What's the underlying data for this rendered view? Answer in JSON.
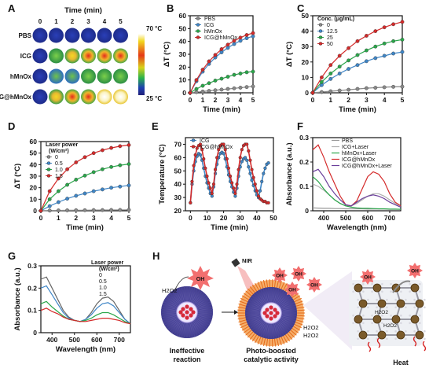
{
  "panels": {
    "A": {
      "label": "A",
      "time_title": "Time (min)",
      "time_ticks": [
        "0",
        "1",
        "2",
        "3",
        "4",
        "5"
      ],
      "rows": [
        "PBS",
        "ICG",
        "hMnOx",
        "ICG@hMnOx"
      ],
      "colorbar_max": "70 °C",
      "colorbar_min": "25 °C"
    },
    "H": {
      "label": "H",
      "nir": "NIR",
      "oh": "OH",
      "h2o2": "H2O2",
      "caption1": "Ineffective",
      "caption2": "reaction",
      "caption3": "Photo-boosted",
      "caption4": "catalytic activity",
      "caption5": "Heat"
    }
  },
  "chart_data": [
    {
      "id": "B",
      "type": "line",
      "label": "B",
      "xlabel": "Time (min)",
      "ylabel": "ΔT (°C)",
      "xlim": [
        0,
        5
      ],
      "ylim": [
        0,
        60
      ],
      "xticks": [
        0,
        1,
        2,
        3,
        4,
        5
      ],
      "yticks": [
        0,
        10,
        20,
        30,
        40,
        50,
        60
      ],
      "legend_position": "top-left",
      "x": [
        0,
        0.5,
        1,
        1.5,
        2,
        2.5,
        3,
        3.5,
        4,
        4.5,
        5
      ],
      "series": [
        {
          "name": "PBS",
          "color": "#888888",
          "values": [
            0,
            0.5,
            1,
            1.5,
            2,
            2.5,
            3,
            3.5,
            4,
            4.5,
            5
          ]
        },
        {
          "name": "ICG",
          "color": "#3f86c7",
          "values": [
            0,
            9,
            16.5,
            22.5,
            27.5,
            31.5,
            35,
            38,
            40.5,
            42.5,
            44
          ]
        },
        {
          "name": "hMnOx",
          "color": "#2aa64a",
          "values": [
            0,
            3,
            5.5,
            7.5,
            9.5,
            11,
            12.5,
            14,
            15,
            16,
            16.5
          ]
        },
        {
          "name": "ICG@hMnOx",
          "color": "#d42a2a",
          "values": [
            0,
            10,
            18,
            24.5,
            29.5,
            34,
            37.5,
            40.5,
            43,
            45,
            46.5
          ]
        }
      ]
    },
    {
      "id": "C",
      "type": "line",
      "label": "C",
      "xlabel": "Time (min)",
      "ylabel": "ΔT (°C)",
      "xlim": [
        0,
        5
      ],
      "ylim": [
        0,
        50
      ],
      "xticks": [
        0,
        1,
        2,
        3,
        4,
        5
      ],
      "yticks": [
        0,
        10,
        20,
        30,
        40,
        50
      ],
      "legend_title": "Conc. (μg/mL)",
      "legend_position": "top-left",
      "x": [
        0,
        0.5,
        1,
        1.5,
        2,
        2.5,
        3,
        3.5,
        4,
        4.5,
        5
      ],
      "series": [
        {
          "name": "0",
          "color": "#888888",
          "values": [
            0,
            0.5,
            1,
            1.5,
            2,
            2.5,
            3,
            3.3,
            3.6,
            3.9,
            4
          ]
        },
        {
          "name": "12.5",
          "color": "#3f86c7",
          "values": [
            0,
            5,
            9,
            12.5,
            15.5,
            18,
            20.5,
            22.5,
            24,
            25.5,
            26.5
          ]
        },
        {
          "name": "25",
          "color": "#2aa64a",
          "values": [
            0,
            7,
            12.5,
            17,
            21,
            24.5,
            27.5,
            30,
            32,
            33.5,
            34.5
          ]
        },
        {
          "name": "50",
          "color": "#d42a2a",
          "values": [
            0,
            10,
            18,
            24,
            29,
            33.5,
            37,
            40,
            42.5,
            44.5,
            46
          ]
        }
      ]
    },
    {
      "id": "D",
      "type": "line",
      "label": "D",
      "xlabel": "Time (min)",
      "ylabel": "ΔT (°C)",
      "xlim": [
        0,
        5
      ],
      "ylim": [
        0,
        60
      ],
      "xticks": [
        0,
        1,
        2,
        3,
        4,
        5
      ],
      "yticks": [
        0,
        10,
        20,
        30,
        40,
        50,
        60
      ],
      "legend_title": "Laser power",
      "legend_subtitle": "(W/cm²)",
      "legend_position": "top-left",
      "x": [
        0,
        0.5,
        1,
        1.5,
        2,
        2.5,
        3,
        3.5,
        4,
        4.5,
        5
      ],
      "series": [
        {
          "name": "0",
          "color": "#888888",
          "values": [
            0,
            0.2,
            0.3,
            0.4,
            0.5,
            0.5,
            0.6,
            0.6,
            0.7,
            0.7,
            0.8
          ]
        },
        {
          "name": "0.5",
          "color": "#3f86c7",
          "values": [
            0,
            4,
            7.5,
            10.5,
            13,
            15,
            17,
            18.5,
            20,
            21,
            22
          ]
        },
        {
          "name": "1.0",
          "color": "#2aa64a",
          "values": [
            0,
            10,
            17,
            22.5,
            27,
            30.5,
            33.5,
            36,
            38,
            39.5,
            40.5
          ]
        },
        {
          "name": "1.5",
          "color": "#d42a2a",
          "values": [
            0,
            17,
            28,
            36,
            42,
            46.5,
            50,
            52.5,
            54.5,
            56,
            57
          ]
        }
      ]
    },
    {
      "id": "E",
      "type": "line",
      "label": "E",
      "xlabel": "Time (min)",
      "ylabel": "Temperature (°C)",
      "xlim": [
        -3,
        50
      ],
      "ylim": [
        20,
        75
      ],
      "xticks": [
        0,
        10,
        20,
        30,
        40,
        50
      ],
      "yticks": [
        20,
        30,
        40,
        50,
        60,
        70
      ],
      "legend_position": "top-left",
      "x": [
        0,
        1,
        2,
        3,
        4,
        5,
        6,
        7,
        8,
        9,
        10,
        11,
        12,
        13,
        14,
        15,
        16,
        17,
        18,
        19,
        20,
        21,
        22,
        23,
        24,
        25,
        26,
        27,
        28,
        29,
        30,
        31,
        32,
        33,
        34,
        35,
        36,
        37,
        38,
        39,
        40,
        41,
        42,
        43,
        44,
        45,
        46,
        47
      ],
      "series": [
        {
          "name": "ICG",
          "color": "#3f86c7",
          "values": [
            26,
            40,
            50,
            57,
            61,
            63,
            62,
            58,
            52,
            46,
            41,
            37,
            33,
            31,
            38,
            48,
            55,
            60,
            63,
            64,
            63,
            59,
            53,
            47,
            42,
            38,
            34,
            31,
            37,
            46,
            53,
            57,
            59,
            60,
            58,
            53,
            48,
            43,
            39,
            35,
            32,
            30,
            35,
            42,
            48,
            52,
            55,
            56
          ]
        },
        {
          "name": "ICG@hMnOx",
          "color": "#d42a2a",
          "values": [
            26,
            42,
            54,
            62,
            67,
            69,
            70,
            66,
            59,
            52,
            46,
            41,
            37,
            33,
            40,
            51,
            60,
            66,
            69,
            70,
            70,
            66,
            59,
            52,
            46,
            41,
            37,
            33,
            40,
            51,
            60,
            66,
            69,
            70,
            70,
            65,
            58,
            51,
            45,
            40,
            35,
            31,
            29,
            28,
            27,
            27,
            26,
            26
          ]
        }
      ]
    },
    {
      "id": "F",
      "type": "line",
      "label": "F",
      "xlabel": "Wavelength (nm)",
      "ylabel": "Absorbance (a.u.)",
      "xlim": [
        350,
        750
      ],
      "ylim": [
        0,
        0.3
      ],
      "xticks": [
        400,
        500,
        600,
        700
      ],
      "yticks": [
        0,
        0.1,
        0.2,
        0.3
      ],
      "legend_position": "top-right",
      "x": [
        350,
        375,
        400,
        425,
        450,
        475,
        500,
        525,
        550,
        575,
        600,
        625,
        650,
        675,
        700,
        725,
        750
      ],
      "series": [
        {
          "name": "PBS",
          "color": "#999999",
          "values": [
            0.012,
            0.011,
            0.01,
            0.01,
            0.009,
            0.009,
            0.008,
            0.008,
            0.008,
            0.008,
            0.007,
            0.007,
            0.007,
            0.007,
            0.006,
            0.006,
            0.006
          ]
        },
        {
          "name": "ICG+Laser",
          "color": "#b0b0b0",
          "values": [
            0.11,
            0.1,
            0.085,
            0.065,
            0.045,
            0.03,
            0.02,
            0.02,
            0.03,
            0.045,
            0.06,
            0.07,
            0.07,
            0.06,
            0.045,
            0.03,
            0.02
          ]
        },
        {
          "name": "hMnOx+Laser",
          "color": "#2aa64a",
          "values": [
            0.14,
            0.12,
            0.09,
            0.065,
            0.045,
            0.03,
            0.02,
            0.015,
            0.012,
            0.01,
            0.01,
            0.009,
            0.008,
            0.008,
            0.007,
            0.007,
            0.006
          ]
        },
        {
          "name": "ICG@hMnOx",
          "color": "#d42a2a",
          "values": [
            0.25,
            0.27,
            0.22,
            0.16,
            0.11,
            0.06,
            0.025,
            0.02,
            0.04,
            0.09,
            0.14,
            0.16,
            0.15,
            0.12,
            0.07,
            0.035,
            0.02
          ]
        },
        {
          "name": "ICG@hMnOx+Laser",
          "color": "#6a3d9a",
          "values": [
            0.16,
            0.17,
            0.14,
            0.1,
            0.07,
            0.045,
            0.025,
            0.02,
            0.035,
            0.05,
            0.06,
            0.065,
            0.06,
            0.05,
            0.035,
            0.025,
            0.015
          ]
        }
      ]
    },
    {
      "id": "G",
      "type": "line",
      "label": "G",
      "xlabel": "Wavelength (nm)",
      "ylabel": "Absorbance (a.u.)",
      "xlim": [
        350,
        750
      ],
      "ylim": [
        0,
        0.3
      ],
      "xticks": [
        400,
        500,
        600,
        700
      ],
      "yticks": [
        0,
        0.1,
        0.2,
        0.3
      ],
      "legend_title": "Laser power",
      "legend_subtitle": "(W/cm²)",
      "legend_position": "top-right",
      "x": [
        350,
        375,
        400,
        425,
        450,
        475,
        500,
        525,
        550,
        575,
        600,
        625,
        650,
        675,
        700,
        725,
        750
      ],
      "series": [
        {
          "name": "0",
          "color": "#666666",
          "values": [
            0.24,
            0.25,
            0.2,
            0.15,
            0.1,
            0.07,
            0.055,
            0.05,
            0.06,
            0.09,
            0.13,
            0.155,
            0.16,
            0.14,
            0.1,
            0.06,
            0.04
          ]
        },
        {
          "name": "0.5",
          "color": "#3f86c7",
          "values": [
            0.2,
            0.21,
            0.17,
            0.13,
            0.09,
            0.065,
            0.055,
            0.05,
            0.06,
            0.08,
            0.11,
            0.13,
            0.135,
            0.12,
            0.09,
            0.06,
            0.04
          ]
        },
        {
          "name": "1.0",
          "color": "#2aa64a",
          "values": [
            0.13,
            0.14,
            0.115,
            0.095,
            0.075,
            0.06,
            0.055,
            0.05,
            0.055,
            0.065,
            0.08,
            0.09,
            0.09,
            0.08,
            0.065,
            0.05,
            0.04
          ]
        },
        {
          "name": "1.5",
          "color": "#d42a2a",
          "values": [
            0.1,
            0.11,
            0.095,
            0.085,
            0.07,
            0.06,
            0.055,
            0.05,
            0.05,
            0.055,
            0.06,
            0.065,
            0.065,
            0.06,
            0.055,
            0.045,
            0.04
          ]
        }
      ]
    }
  ]
}
